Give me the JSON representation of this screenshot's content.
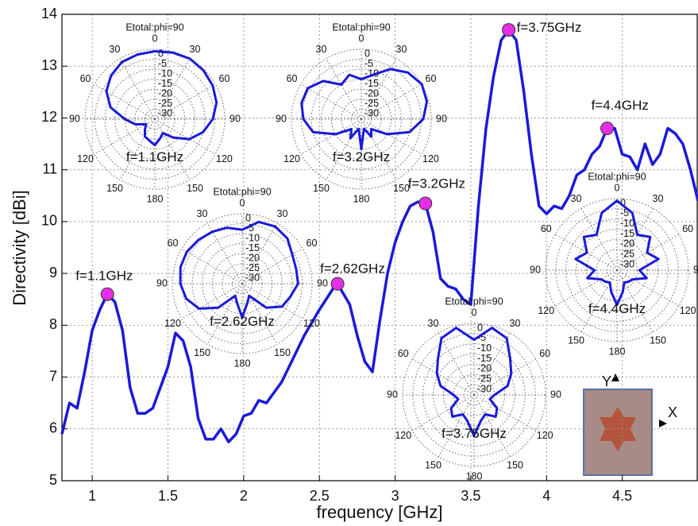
{
  "chart_data": [
    {
      "type": "line",
      "xlabel": "frequency [GHz]",
      "ylabel": "Directivity [dBi]",
      "xlim": [
        0.8,
        5
      ],
      "ylim": [
        5,
        14
      ],
      "xticks": [
        1,
        1.5,
        2,
        2.5,
        3,
        3.5,
        4,
        4.5
      ],
      "yticks": [
        5,
        6,
        7,
        8,
        9,
        10,
        11,
        12,
        13,
        14
      ],
      "grid": true,
      "series": [
        {
          "name": "Directivity",
          "color": "#1a1ad8",
          "x": [
            0.8,
            0.85,
            0.9,
            0.95,
            1.0,
            1.05,
            1.1,
            1.15,
            1.2,
            1.25,
            1.3,
            1.35,
            1.4,
            1.45,
            1.5,
            1.55,
            1.6,
            1.65,
            1.7,
            1.75,
            1.8,
            1.85,
            1.9,
            1.95,
            2.0,
            2.05,
            2.1,
            2.15,
            2.2,
            2.25,
            2.3,
            2.4,
            2.5,
            2.6,
            2.62,
            2.7,
            2.75,
            2.8,
            2.85,
            2.9,
            2.95,
            3.0,
            3.05,
            3.1,
            3.15,
            3.2,
            3.25,
            3.3,
            3.35,
            3.4,
            3.45,
            3.5,
            3.55,
            3.6,
            3.65,
            3.7,
            3.75,
            3.8,
            3.85,
            3.9,
            3.95,
            4.0,
            4.05,
            4.1,
            4.15,
            4.2,
            4.25,
            4.3,
            4.35,
            4.4,
            4.45,
            4.5,
            4.55,
            4.6,
            4.65,
            4.7,
            4.75,
            4.8,
            4.85,
            4.9,
            4.95,
            5.0
          ],
          "values": [
            5.9,
            6.5,
            6.4,
            7.1,
            7.9,
            8.3,
            8.6,
            8.45,
            7.9,
            6.8,
            6.3,
            6.3,
            6.4,
            6.8,
            7.2,
            7.85,
            7.7,
            7.2,
            6.2,
            5.8,
            5.8,
            6.0,
            5.75,
            5.9,
            6.25,
            6.3,
            6.55,
            6.5,
            6.7,
            6.9,
            7.2,
            7.8,
            8.3,
            8.75,
            8.8,
            8.4,
            7.8,
            7.3,
            7.1,
            8.1,
            9.0,
            9.6,
            10.0,
            10.3,
            10.38,
            10.35,
            9.8,
            8.9,
            8.75,
            8.7,
            8.5,
            8.4,
            10.3,
            11.8,
            12.8,
            13.5,
            13.7,
            13.5,
            12.5,
            11.3,
            10.3,
            10.15,
            10.3,
            10.25,
            10.5,
            10.9,
            11.0,
            11.3,
            11.45,
            11.8,
            11.8,
            11.3,
            11.25,
            11.0,
            11.5,
            11.1,
            11.3,
            11.8,
            11.7,
            11.5,
            11.0,
            10.4
          ]
        }
      ],
      "annotations": [
        {
          "x": 1.1,
          "y": 8.6,
          "text": "f=1.1GHz"
        },
        {
          "x": 2.62,
          "y": 8.8,
          "text": "f=2.62GHz"
        },
        {
          "x": 3.2,
          "y": 10.35,
          "text": "f=3.2GHz"
        },
        {
          "x": 3.75,
          "y": 13.7,
          "text": "f=3.75GHz"
        },
        {
          "x": 4.4,
          "y": 11.8,
          "text": "f=4.4GHz"
        }
      ],
      "marker_color": "#e62ee6",
      "photo_labels": [
        "Y",
        "X"
      ]
    },
    {
      "type": "polar",
      "title": "Etotal:phi=90",
      "label": "f=1.1GHz",
      "color": "#1a1ad8",
      "angles": [
        0,
        15,
        30,
        45,
        60,
        75,
        90,
        105,
        120,
        135,
        150,
        165,
        180,
        195,
        210,
        225,
        240,
        255,
        270,
        285,
        300,
        315,
        330,
        345
      ],
      "values": [
        -1,
        -0.5,
        0,
        -0.5,
        -1.5,
        -3,
        -6,
        -10,
        -15,
        -22,
        -27,
        -25,
        -22,
        -24,
        -25,
        -28,
        -30,
        -25,
        -20,
        -12,
        -7,
        -4,
        -2,
        -1.5
      ],
      "rlim": [
        -35,
        0
      ],
      "rticks": [
        0,
        -5,
        -10,
        -15,
        -20,
        -25,
        -30
      ],
      "thetaticks": [
        0,
        30,
        60,
        90,
        120,
        150,
        180,
        {
          "value": 210,
          "label": "150"
        },
        {
          "value": 240,
          "label": "120"
        },
        {
          "value": 270,
          "label": "90"
        },
        {
          "value": 300,
          "label": "60"
        },
        {
          "value": 330,
          "label": "30"
        }
      ]
    },
    {
      "type": "polar",
      "title": "Etotal:phi=90",
      "label": "f=3.2GHz",
      "color": "#1a1ad8",
      "angles": [
        0,
        15,
        30,
        45,
        60,
        75,
        90,
        105,
        120,
        135,
        150,
        165,
        180,
        195,
        210,
        225,
        240,
        255,
        270,
        285,
        300,
        315,
        330,
        345
      ],
      "values": [
        -15,
        -12,
        -6,
        -2,
        0,
        -1,
        -4,
        -10,
        -20,
        -28,
        -25,
        -30,
        -20,
        -30,
        -24,
        -28,
        -20,
        -10,
        -6,
        -4,
        -4,
        -8,
        -15,
        -12
      ],
      "rlim": [
        -35,
        0
      ],
      "rticks": [
        0,
        -5,
        -10,
        -15,
        -20,
        -25,
        -30
      ],
      "thetaticks": [
        0,
        30,
        60,
        90,
        120,
        150,
        180,
        {
          "value": 210,
          "label": "150"
        },
        {
          "value": 240,
          "label": "120"
        },
        {
          "value": 270,
          "label": "90"
        },
        {
          "value": 300,
          "label": "60"
        },
        {
          "value": 330,
          "label": "30"
        }
      ]
    },
    {
      "type": "polar",
      "title": "Etotal:phi=90",
      "label": "f=2.62GHz",
      "color": "#1a1ad8",
      "angles": [
        0,
        15,
        30,
        45,
        60,
        75,
        90,
        105,
        120,
        135,
        150,
        165,
        180,
        195,
        210,
        225,
        240,
        255,
        270,
        285,
        300,
        315,
        330,
        345
      ],
      "values": [
        -8,
        -3,
        -2,
        -3,
        -6,
        -7,
        -7,
        -10,
        -12,
        -18,
        -28,
        -25,
        -18,
        -25,
        -28,
        -18,
        -10,
        -6,
        -4,
        -3,
        -3,
        -4,
        -5,
        -6
      ],
      "rlim": [
        -35,
        0
      ],
      "rticks": [
        0,
        -5,
        -10,
        -15,
        -20,
        -25,
        -30
      ],
      "thetaticks": [
        0,
        30,
        60,
        90,
        120,
        150,
        180,
        {
          "value": 210,
          "label": "150"
        },
        {
          "value": 240,
          "label": "120"
        },
        {
          "value": 270,
          "label": "90"
        },
        {
          "value": 300,
          "label": "60"
        },
        {
          "value": 330,
          "label": "30"
        }
      ]
    },
    {
      "type": "polar",
      "title": "Etotal:phi=90",
      "label": "f=3.75GHz",
      "color": "#1a1ad8",
      "angles": [
        0,
        15,
        30,
        45,
        60,
        75,
        90,
        105,
        120,
        135,
        150,
        165,
        180,
        195,
        210,
        225,
        240,
        255,
        270,
        285,
        300,
        315,
        330,
        345
      ],
      "values": [
        -8,
        -1,
        -3,
        -10,
        -14,
        -18,
        -25,
        -27,
        -22,
        -20,
        -24,
        -22,
        -15,
        -22,
        -24,
        -20,
        -22,
        -27,
        -25,
        -18,
        -14,
        -10,
        -3,
        -1
      ],
      "rlim": [
        -35,
        0
      ],
      "rticks": [
        0,
        -5,
        -10,
        -15,
        -20,
        -25,
        -30
      ],
      "thetaticks": [
        0,
        30,
        60,
        90,
        120,
        150,
        180,
        {
          "value": 210,
          "label": "150"
        },
        {
          "value": 240,
          "label": "120"
        },
        {
          "value": 270,
          "label": "90"
        },
        {
          "value": 300,
          "label": "60"
        },
        {
          "value": 330,
          "label": "30"
        }
      ]
    },
    {
      "type": "polar",
      "title": "Etotal:phi=90",
      "label": "f=4.4GHz",
      "color": "#1a1ad8",
      "angles": [
        0,
        15,
        30,
        45,
        60,
        75,
        90,
        105,
        120,
        135,
        150,
        165,
        180,
        195,
        210,
        225,
        240,
        255,
        270,
        285,
        300,
        315,
        330,
        345
      ],
      "values": [
        -1,
        -6,
        -15,
        -12,
        -18,
        -14,
        -24,
        -20,
        -26,
        -27,
        -28,
        -24,
        -18,
        -24,
        -28,
        -27,
        -26,
        -20,
        -24,
        -14,
        -18,
        -12,
        -15,
        -6
      ],
      "rlim": [
        -35,
        0
      ],
      "rticks": [
        0,
        -5,
        -10,
        -15,
        -20,
        -25,
        -30
      ],
      "thetaticks": [
        0,
        30,
        60,
        90,
        120,
        150,
        180,
        {
          "value": 210,
          "label": "150"
        },
        {
          "value": 240,
          "label": "120"
        },
        {
          "value": 270,
          "label": "90"
        },
        {
          "value": 300,
          "label": "60"
        },
        {
          "value": 330,
          "label": "30"
        }
      ]
    }
  ]
}
